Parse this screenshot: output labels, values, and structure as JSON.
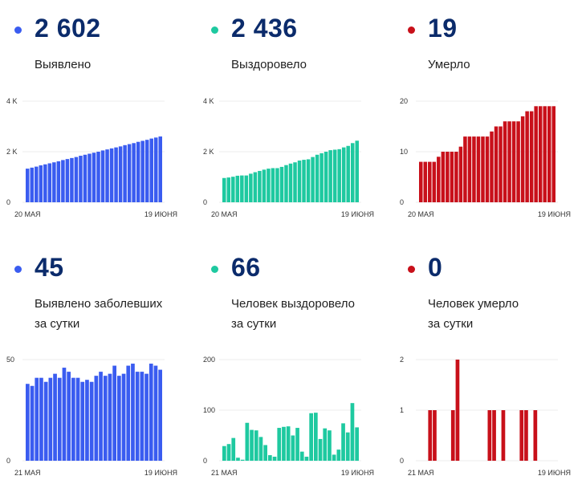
{
  "cards": [
    {
      "value": "2 602",
      "label": "Выявлено",
      "color": "#3a5cf0",
      "chart_data": {
        "type": "bar",
        "yticks": [
          "0",
          "2 K",
          "4 K"
        ],
        "ylim": [
          0,
          4000
        ],
        "xlabels": [
          "20 МАЯ",
          "19 ИЮНЯ"
        ],
        "values": [
          1330,
          1370,
          1410,
          1460,
          1500,
          1540,
          1580,
          1620,
          1670,
          1710,
          1750,
          1790,
          1840,
          1880,
          1920,
          1960,
          2000,
          2050,
          2090,
          2130,
          2170,
          2210,
          2260,
          2300,
          2340,
          2390,
          2430,
          2470,
          2520,
          2560,
          2602
        ]
      }
    },
    {
      "value": "2 436",
      "label": "Выздоровело",
      "color": "#1ec9a0",
      "chart_data": {
        "type": "bar",
        "yticks": [
          "0",
          "2 K",
          "4 K"
        ],
        "ylim": [
          0,
          4000
        ],
        "xlabels": [
          "20 МАЯ",
          "19 ИЮНЯ"
        ],
        "values": [
          960,
          980,
          1010,
          1050,
          1060,
          1060,
          1130,
          1190,
          1240,
          1290,
          1330,
          1350,
          1350,
          1400,
          1470,
          1530,
          1580,
          1650,
          1680,
          1700,
          1790,
          1880,
          1940,
          2000,
          2060,
          2080,
          2100,
          2170,
          2230,
          2340,
          2436
        ]
      }
    },
    {
      "value": "19",
      "label": "Умерло",
      "color": "#c8101a",
      "chart_data": {
        "type": "bar",
        "yticks": [
          "0",
          "10",
          "20"
        ],
        "ylim": [
          0,
          20
        ],
        "xlabels": [
          "20 МАЯ",
          "19 ИЮНЯ"
        ],
        "values": [
          8,
          8,
          8,
          8,
          9,
          10,
          10,
          10,
          10,
          11,
          13,
          13,
          13,
          13,
          13,
          13,
          14,
          15,
          15,
          16,
          16,
          16,
          16,
          17,
          18,
          18,
          19,
          19,
          19,
          19,
          19
        ]
      }
    },
    {
      "value": "45",
      "label": "Выявлено заболевших",
      "label2": "за сутки",
      "color": "#3a5cf0",
      "chart_data": {
        "type": "bar",
        "yticks": [
          "0",
          "50"
        ],
        "ylim": [
          0,
          50
        ],
        "xlabels": [
          "21 МАЯ",
          "19 ИЮНЯ"
        ],
        "values": [
          38,
          37,
          41,
          41,
          39,
          41,
          43,
          41,
          46,
          44,
          41,
          41,
          39,
          40,
          39,
          42,
          44,
          42,
          43,
          47,
          42,
          43,
          47,
          48,
          44,
          44,
          43,
          48,
          47,
          45
        ]
      }
    },
    {
      "value": "66",
      "label": "Человек выздоровело",
      "label2": "за сутки",
      "color": "#1ec9a0",
      "chart_data": {
        "type": "bar",
        "yticks": [
          "0",
          "100",
          "200"
        ],
        "ylim": [
          0,
          200
        ],
        "xlabels": [
          "21 МАЯ",
          "19 ИЮНЯ"
        ],
        "values": [
          29,
          33,
          45,
          6,
          2,
          75,
          61,
          60,
          47,
          31,
          11,
          8,
          65,
          67,
          68,
          50,
          65,
          18,
          8,
          94,
          95,
          43,
          64,
          60,
          12,
          22,
          74,
          56,
          114,
          66
        ]
      }
    },
    {
      "value": "0",
      "label": "Человек умерло",
      "label2": "за сутки",
      "color": "#c8101a",
      "chart_data": {
        "type": "bar",
        "yticks": [
          "0",
          "1",
          "2"
        ],
        "ylim": [
          0,
          2
        ],
        "xlabels": [
          "21 МАЯ",
          "19 ИЮНЯ"
        ],
        "values": [
          0,
          0,
          1,
          1,
          0,
          0,
          0,
          1,
          2,
          0,
          0,
          0,
          0,
          0,
          0,
          1,
          1,
          0,
          1,
          0,
          0,
          0,
          1,
          1,
          0,
          1,
          0,
          0,
          0,
          0
        ]
      }
    }
  ]
}
